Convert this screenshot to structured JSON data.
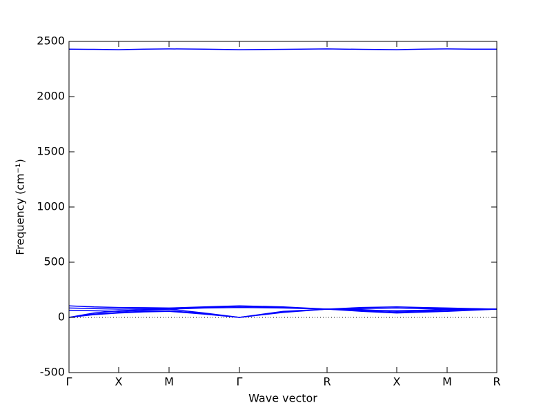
{
  "chart_data": {
    "type": "line",
    "xlabel": "Wave vector",
    "ylabel": "Frequency (cm⁻¹)",
    "x": [
      0,
      0.36,
      0.72,
      1.085,
      1.45,
      1.96,
      2.47,
      3.105,
      3.74,
      4.245,
      4.75,
      5.115,
      5.48,
      5.84,
      6.2
    ],
    "series": [
      {
        "color": "#0000ff",
        "values": [
          0,
          25,
          40,
          50,
          55,
          30,
          0,
          45,
          75,
          55,
          40,
          48,
          55,
          65,
          75
        ]
      },
      {
        "color": "#0000ff",
        "values": [
          0,
          30,
          45,
          55,
          60,
          35,
          0,
          50,
          75,
          60,
          45,
          52,
          60,
          68,
          75
        ]
      },
      {
        "color": "#0000ff",
        "values": [
          0,
          40,
          60,
          70,
          75,
          40,
          0,
          55,
          75,
          65,
          60,
          65,
          75,
          75,
          75
        ]
      },
      {
        "color": "#0000ff",
        "values": [
          65,
          60,
          55,
          65,
          75,
          85,
          90,
          85,
          75,
          70,
          55,
          60,
          70,
          72,
          75
        ]
      },
      {
        "color": "#0000ff",
        "values": [
          85,
          80,
          75,
          78,
          80,
          90,
          100,
          90,
          75,
          80,
          85,
          80,
          80,
          78,
          75
        ]
      },
      {
        "color": "#0000ff",
        "values": [
          105,
          95,
          90,
          88,
          85,
          95,
          105,
          95,
          75,
          90,
          95,
          90,
          85,
          80,
          75
        ]
      },
      {
        "color": "#0000ff",
        "values": [
          2430,
          2428,
          2425,
          2430,
          2432,
          2430,
          2425,
          2428,
          2432,
          2428,
          2425,
          2430,
          2432,
          2430,
          2430
        ]
      }
    ],
    "xlim": [
      0,
      6.2
    ],
    "xticks": [
      {
        "value": 0,
        "label": "Γ"
      },
      {
        "value": 0.72,
        "label": "X"
      },
      {
        "value": 1.45,
        "label": "M"
      },
      {
        "value": 2.47,
        "label": "Γ"
      },
      {
        "value": 3.74,
        "label": "R"
      },
      {
        "value": 4.75,
        "label": "X"
      },
      {
        "value": 5.48,
        "label": "M"
      },
      {
        "value": 6.2,
        "label": "R"
      }
    ],
    "ylim": [
      -500,
      2500
    ],
    "yticks": [
      -500,
      0,
      500,
      1000,
      1500,
      2000,
      2500
    ],
    "reference_line": 0,
    "reference_color": "#000000"
  }
}
